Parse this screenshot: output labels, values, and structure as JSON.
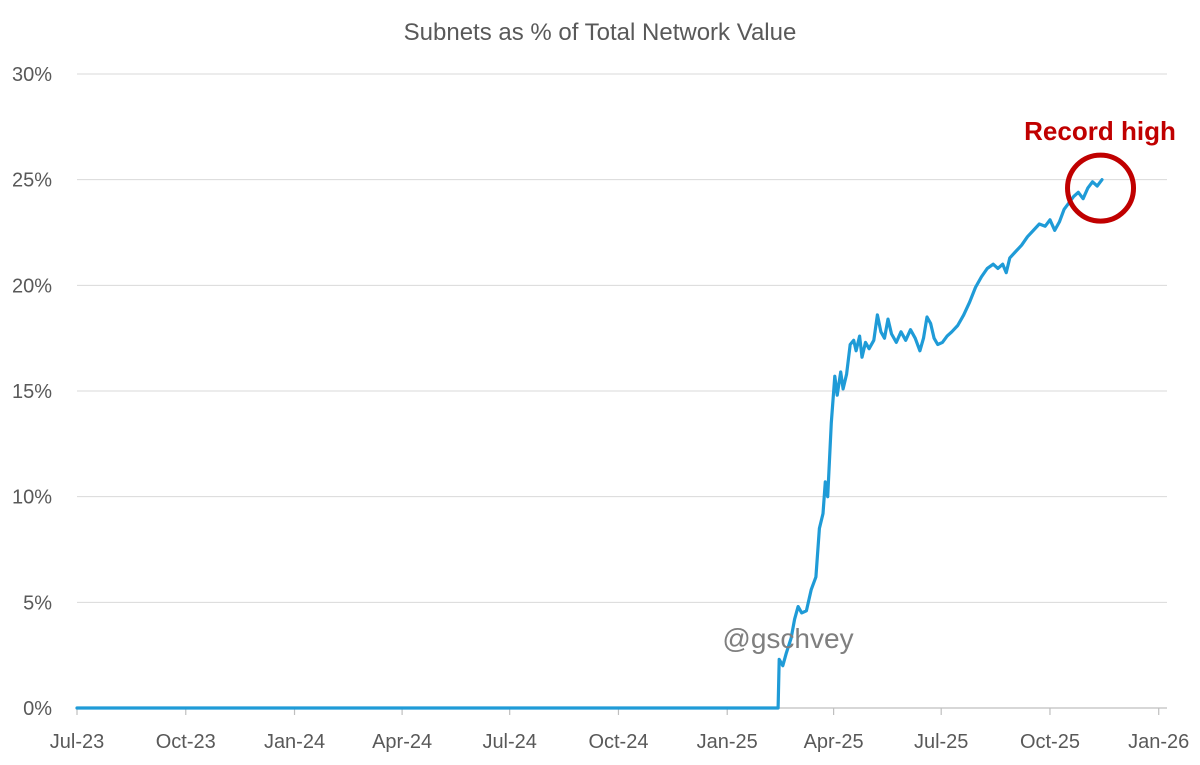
{
  "chart_data": {
    "type": "line",
    "title": "Subnets as % of Total Network Value",
    "xlabel": "",
    "ylabel": "",
    "ylim": [
      0,
      30
    ],
    "y_tick_labels": [
      "0%",
      "5%",
      "10%",
      "15%",
      "20%",
      "25%",
      "30%"
    ],
    "y_ticks": [
      0,
      5,
      10,
      15,
      20,
      25,
      30
    ],
    "x_tick_labels": [
      "Jul-23",
      "Oct-23",
      "Jan-24",
      "Apr-24",
      "Jul-24",
      "Oct-24",
      "Jan-25",
      "Apr-25",
      "Jul-25",
      "Oct-25",
      "Jan-26"
    ],
    "x_ticks": [
      "2023-07-01",
      "2023-10-01",
      "2024-01-01",
      "2024-04-01",
      "2024-07-01",
      "2024-10-01",
      "2025-01-01",
      "2025-04-01",
      "2025-07-01",
      "2025-10-01",
      "2026-01-01"
    ],
    "xlim": [
      "2023-07-01",
      "2026-01-08"
    ],
    "grid": true,
    "legend": "none",
    "series": [
      {
        "color": "#1f9bd7",
        "points": [
          [
            "2023-07-01",
            0
          ],
          [
            "2025-02-13",
            0
          ],
          [
            "2025-02-14",
            2.3
          ],
          [
            "2025-02-17",
            2.0
          ],
          [
            "2025-02-20",
            2.6
          ],
          [
            "2025-02-24",
            3.3
          ],
          [
            "2025-02-27",
            4.2
          ],
          [
            "2025-03-02",
            4.8
          ],
          [
            "2025-03-05",
            4.5
          ],
          [
            "2025-03-09",
            4.6
          ],
          [
            "2025-03-13",
            5.6
          ],
          [
            "2025-03-17",
            6.2
          ],
          [
            "2025-03-20",
            8.5
          ],
          [
            "2025-03-23",
            9.2
          ],
          [
            "2025-03-25",
            10.7
          ],
          [
            "2025-03-27",
            10.0
          ],
          [
            "2025-03-30",
            13.5
          ],
          [
            "2025-04-02",
            15.7
          ],
          [
            "2025-04-04",
            14.8
          ],
          [
            "2025-04-07",
            15.9
          ],
          [
            "2025-04-09",
            15.1
          ],
          [
            "2025-04-12",
            15.8
          ],
          [
            "2025-04-15",
            17.2
          ],
          [
            "2025-04-18",
            17.4
          ],
          [
            "2025-04-20",
            16.9
          ],
          [
            "2025-04-23",
            17.6
          ],
          [
            "2025-04-25",
            16.6
          ],
          [
            "2025-04-28",
            17.3
          ],
          [
            "2025-05-01",
            17.0
          ],
          [
            "2025-05-05",
            17.4
          ],
          [
            "2025-05-08",
            18.6
          ],
          [
            "2025-05-11",
            17.8
          ],
          [
            "2025-05-14",
            17.5
          ],
          [
            "2025-05-17",
            18.4
          ],
          [
            "2025-05-20",
            17.7
          ],
          [
            "2025-05-24",
            17.3
          ],
          [
            "2025-05-28",
            17.8
          ],
          [
            "2025-06-01",
            17.4
          ],
          [
            "2025-06-05",
            17.9
          ],
          [
            "2025-06-09",
            17.5
          ],
          [
            "2025-06-13",
            16.9
          ],
          [
            "2025-06-16",
            17.5
          ],
          [
            "2025-06-19",
            18.5
          ],
          [
            "2025-06-22",
            18.2
          ],
          [
            "2025-06-25",
            17.5
          ],
          [
            "2025-06-28",
            17.2
          ],
          [
            "2025-07-02",
            17.3
          ],
          [
            "2025-07-06",
            17.6
          ],
          [
            "2025-07-10",
            17.8
          ],
          [
            "2025-07-15",
            18.1
          ],
          [
            "2025-07-20",
            18.6
          ],
          [
            "2025-07-25",
            19.2
          ],
          [
            "2025-07-30",
            19.9
          ],
          [
            "2025-08-04",
            20.4
          ],
          [
            "2025-08-09",
            20.8
          ],
          [
            "2025-08-14",
            21.0
          ],
          [
            "2025-08-18",
            20.8
          ],
          [
            "2025-08-22",
            21.0
          ],
          [
            "2025-08-25",
            20.6
          ],
          [
            "2025-08-28",
            21.3
          ],
          [
            "2025-09-02",
            21.6
          ],
          [
            "2025-09-07",
            21.9
          ],
          [
            "2025-09-12",
            22.3
          ],
          [
            "2025-09-17",
            22.6
          ],
          [
            "2025-09-22",
            22.9
          ],
          [
            "2025-09-27",
            22.8
          ],
          [
            "2025-10-01",
            23.1
          ],
          [
            "2025-10-05",
            22.6
          ],
          [
            "2025-10-09",
            23.0
          ],
          [
            "2025-10-13",
            23.6
          ],
          [
            "2025-10-17",
            23.9
          ],
          [
            "2025-10-21",
            24.2
          ],
          [
            "2025-10-25",
            24.4
          ],
          [
            "2025-10-29",
            24.1
          ],
          [
            "2025-11-02",
            24.6
          ],
          [
            "2025-11-06",
            24.9
          ],
          [
            "2025-11-10",
            24.7
          ],
          [
            "2025-11-14",
            25.0
          ]
        ]
      }
    ],
    "annotations": [
      {
        "text": "Record high",
        "color": "#c00000",
        "date": "2025-11-06",
        "value": 24.6
      }
    ],
    "watermark": "@gschvey"
  }
}
